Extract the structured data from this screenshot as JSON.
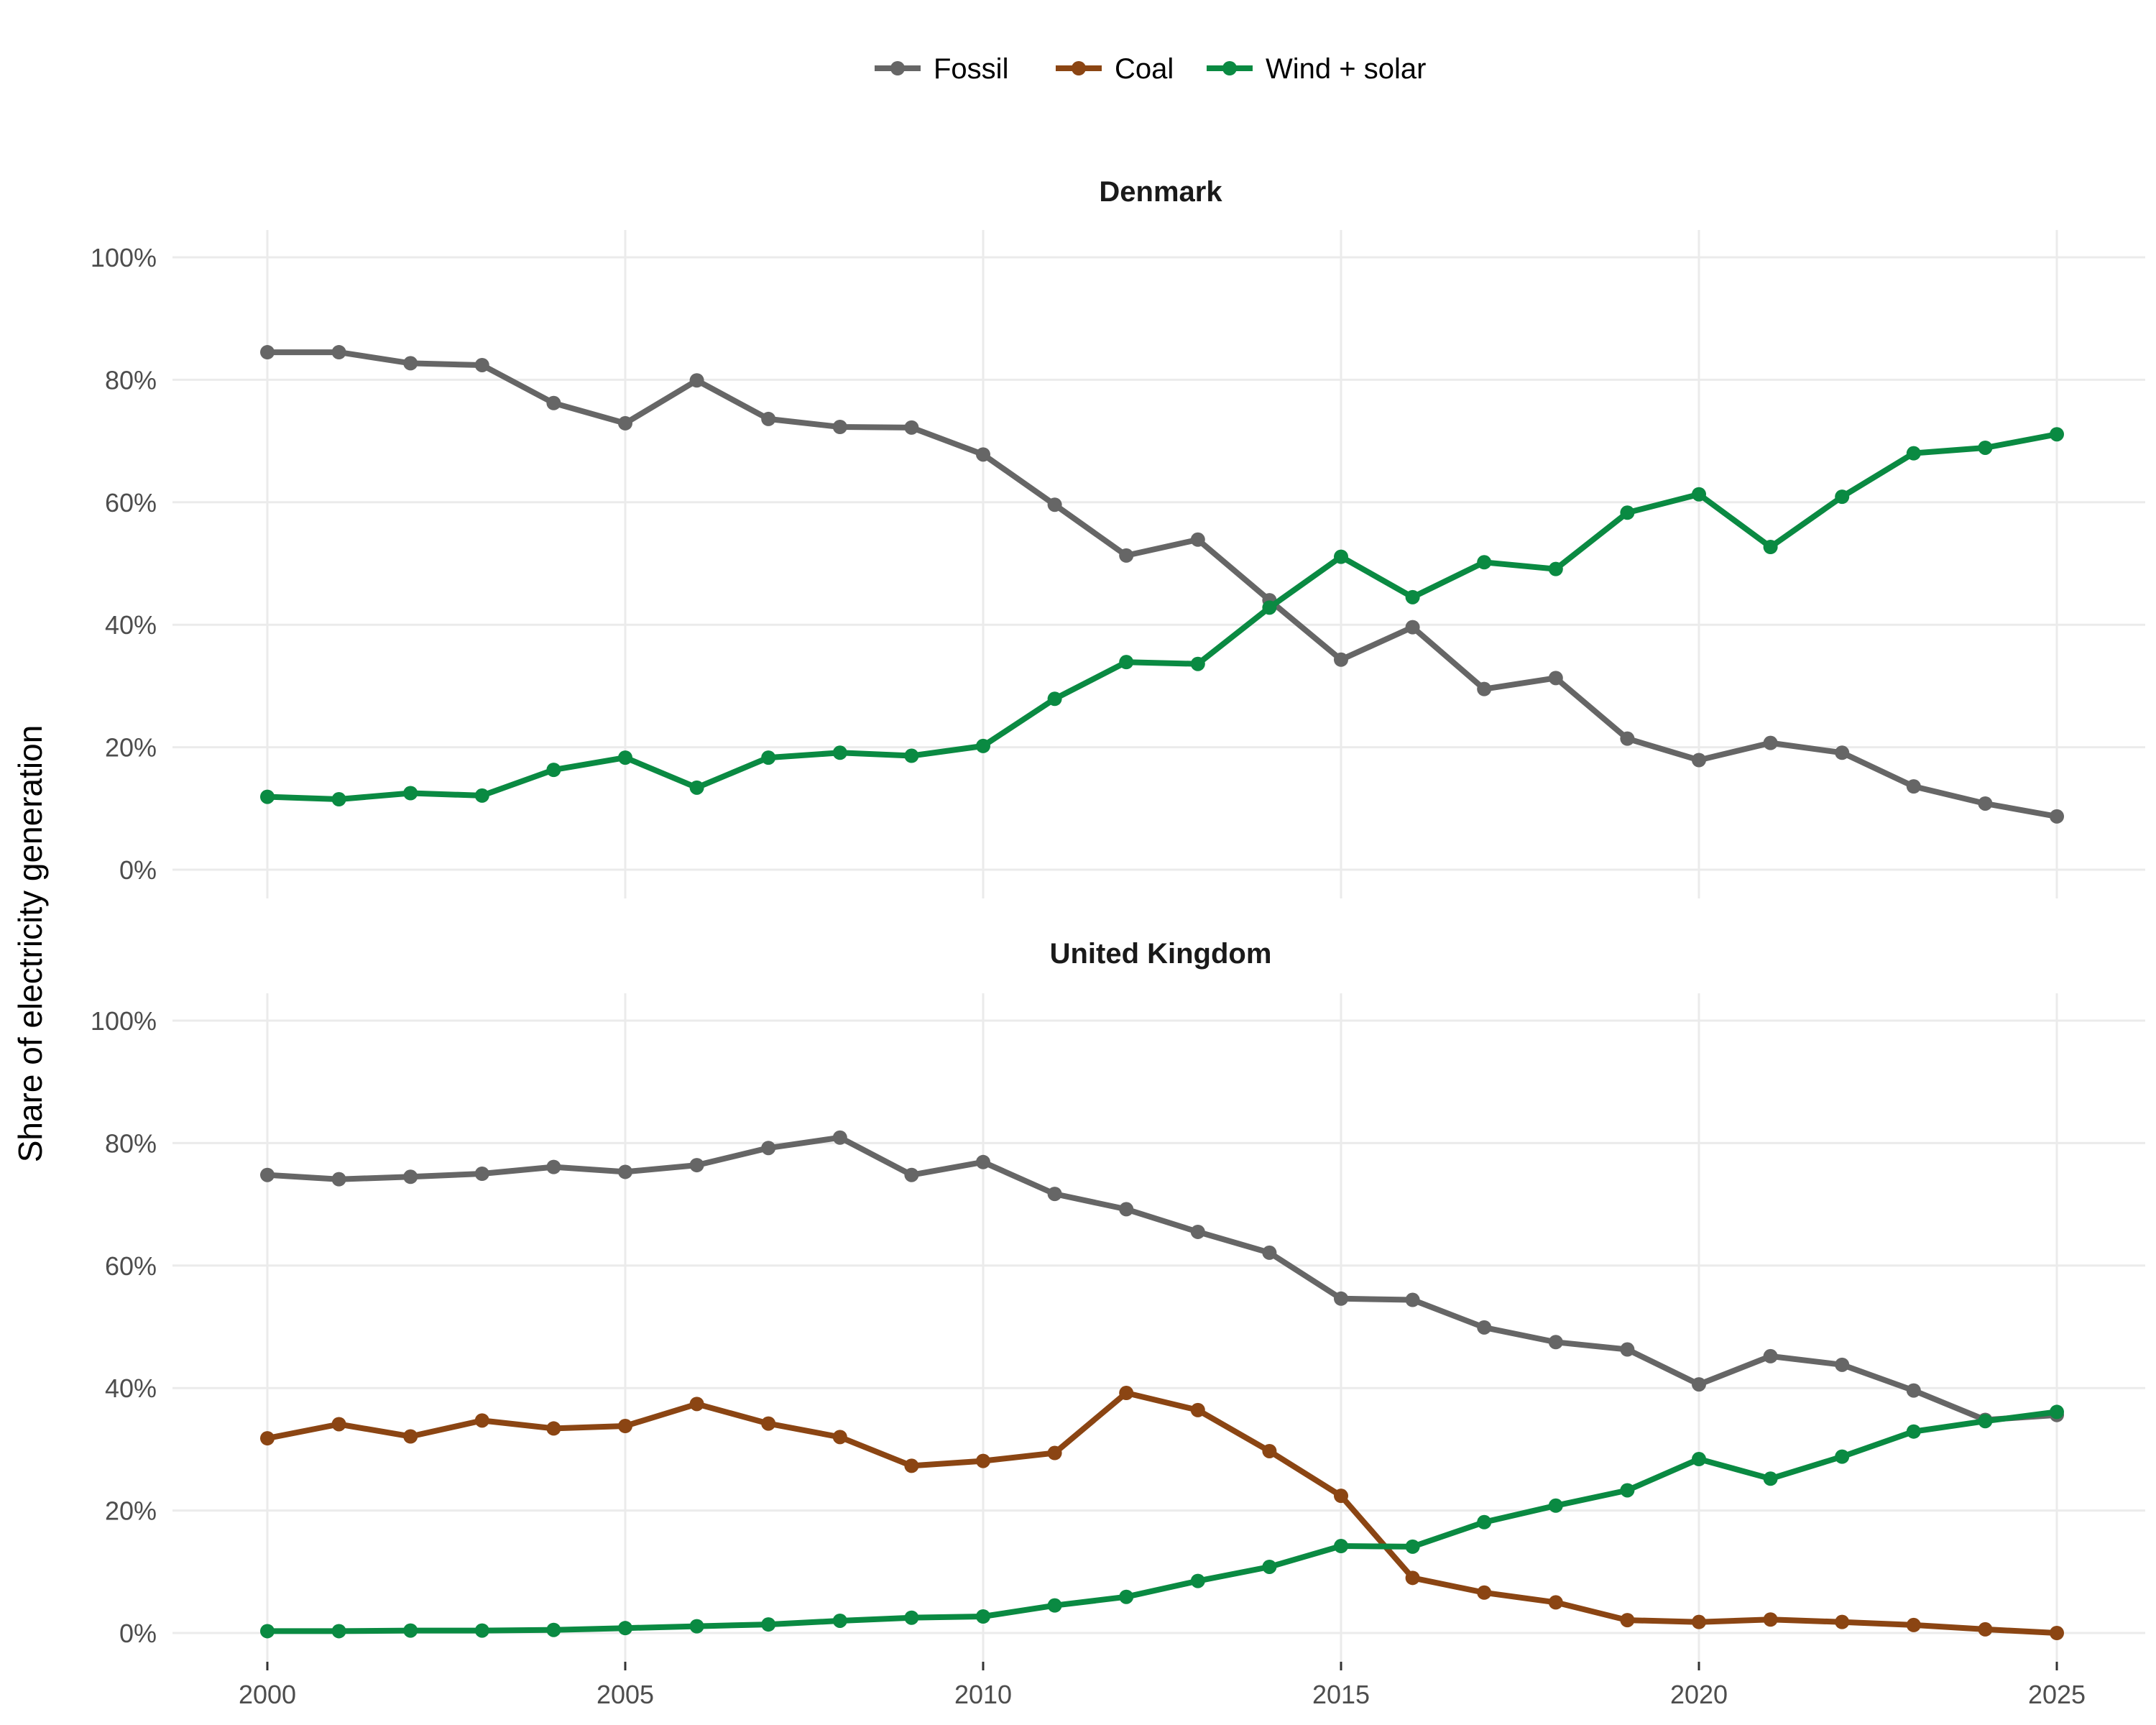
{
  "chart_data": {
    "type": "line",
    "ylabel": "Share of electricity generation",
    "y_tick_labels": [
      "0%",
      "20%",
      "40%",
      "60%",
      "80%",
      "100%"
    ],
    "y_ticks": [
      0,
      20,
      40,
      60,
      80,
      100
    ],
    "ylim": [
      0,
      100
    ],
    "x_ticks": [
      2000,
      2005,
      2010,
      2015,
      2020,
      2025
    ],
    "x_tick_labels": [
      "2000",
      "2005",
      "2010",
      "2015",
      "2020",
      "2025"
    ],
    "xlim": [
      2000,
      2025
    ],
    "grid": true,
    "legend_position": "top",
    "legend": [
      {
        "name": "Fossil",
        "color": "#666666"
      },
      {
        "name": "Coal",
        "color": "#8B4513"
      },
      {
        "name": "Wind + solar",
        "color": "#0A8A42"
      }
    ],
    "panels": [
      {
        "title": "Denmark",
        "x": [
          2000,
          2001,
          2002,
          2003,
          2004,
          2005,
          2006,
          2007,
          2008,
          2009,
          2010,
          2011,
          2012,
          2013,
          2014,
          2015,
          2016,
          2017,
          2018,
          2019,
          2020,
          2021,
          2022,
          2023,
          2024,
          2025
        ],
        "series": [
          {
            "name": "Fossil",
            "color": "#666666",
            "values": [
              84.5,
              84.5,
              82.7,
              82.4,
              76.2,
              72.9,
              79.9,
              73.6,
              72.3,
              72.2,
              67.8,
              59.6,
              51.3,
              53.9,
              44.0,
              34.3,
              39.6,
              29.5,
              31.3,
              21.4,
              17.9,
              20.7,
              19.1,
              13.6,
              10.8,
              8.7
            ]
          },
          {
            "name": "Wind + solar",
            "color": "#0A8A42",
            "values": [
              11.9,
              11.5,
              12.5,
              12.1,
              16.3,
              18.3,
              13.4,
              18.3,
              19.1,
              18.6,
              20.2,
              27.9,
              33.9,
              33.6,
              42.8,
              51.1,
              44.5,
              50.2,
              49.1,
              58.3,
              61.3,
              52.7,
              60.9,
              68.0,
              68.9,
              71.1
            ]
          }
        ]
      },
      {
        "title": "United Kingdom",
        "x": [
          2000,
          2001,
          2002,
          2003,
          2004,
          2005,
          2006,
          2007,
          2008,
          2009,
          2010,
          2011,
          2012,
          2013,
          2014,
          2015,
          2016,
          2017,
          2018,
          2019,
          2020,
          2021,
          2022,
          2023,
          2024,
          2025
        ],
        "series": [
          {
            "name": "Fossil",
            "color": "#666666",
            "values": [
              74.8,
              74.1,
              74.5,
              75.0,
              76.1,
              75.3,
              76.4,
              79.2,
              80.9,
              74.8,
              76.9,
              71.7,
              69.2,
              65.5,
              62.1,
              54.6,
              54.4,
              49.9,
              47.5,
              46.3,
              40.6,
              45.2,
              43.8,
              39.6,
              34.8,
              35.6
            ]
          },
          {
            "name": "Coal",
            "color": "#8B4513",
            "values": [
              31.8,
              34.1,
              32.1,
              34.7,
              33.4,
              33.8,
              37.4,
              34.2,
              32.0,
              27.3,
              28.1,
              29.4,
              39.2,
              36.4,
              29.7,
              22.4,
              9.0,
              6.6,
              5.0,
              2.1,
              1.8,
              2.2,
              1.8,
              1.3,
              0.6,
              0.0
            ]
          },
          {
            "name": "Wind + solar",
            "color": "#0A8A42",
            "values": [
              0.3,
              0.3,
              0.4,
              0.4,
              0.5,
              0.8,
              1.1,
              1.4,
              2.0,
              2.5,
              2.7,
              4.5,
              5.9,
              8.5,
              10.8,
              14.2,
              14.1,
              18.1,
              20.8,
              23.3,
              28.4,
              25.2,
              28.8,
              32.9,
              34.6,
              36.1
            ]
          }
        ]
      }
    ]
  }
}
